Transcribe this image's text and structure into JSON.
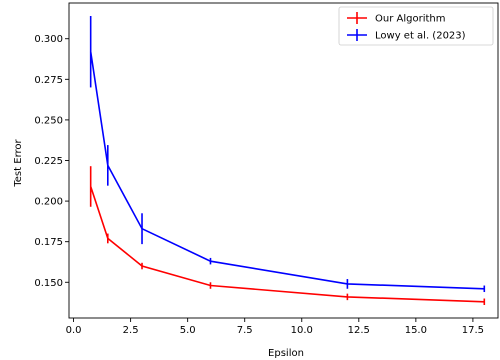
{
  "chart_data": {
    "type": "line",
    "xlabel": "Epsilon",
    "ylabel": "Test Error",
    "xlim": [
      -0.2,
      18.6
    ],
    "ylim": [
      0.128,
      0.322
    ],
    "x_ticks": [
      "0.0",
      "2.5",
      "5.0",
      "7.5",
      "10.0",
      "12.5",
      "15.0",
      "17.5"
    ],
    "y_ticks": [
      "0.150",
      "0.175",
      "0.200",
      "0.225",
      "0.250",
      "0.275",
      "0.300"
    ],
    "x_tick_values": [
      0,
      2.5,
      5,
      7.5,
      10,
      12.5,
      15,
      17.5
    ],
    "y_tick_values": [
      0.15,
      0.175,
      0.2,
      0.225,
      0.25,
      0.275,
      0.3
    ],
    "grid": false,
    "legend_position": "top-right",
    "series": [
      {
        "name": "Our Algorithm",
        "color": "#ff0000",
        "x": [
          0.75,
          1.5,
          3,
          6,
          12,
          18
        ],
        "y": [
          0.209,
          0.177,
          0.16,
          0.148,
          0.141,
          0.138
        ],
        "err": [
          0.0125,
          0.003,
          0.002,
          0.002,
          0.002,
          0.002
        ]
      },
      {
        "name": "Lowy et al. (2023)",
        "color": "#0000ff",
        "x": [
          0.75,
          1.5,
          3,
          6,
          12,
          18
        ],
        "y": [
          0.292,
          0.222,
          0.183,
          0.163,
          0.149,
          0.146
        ],
        "err": [
          0.022,
          0.0125,
          0.0095,
          0.002,
          0.003,
          0.002
        ]
      }
    ]
  }
}
